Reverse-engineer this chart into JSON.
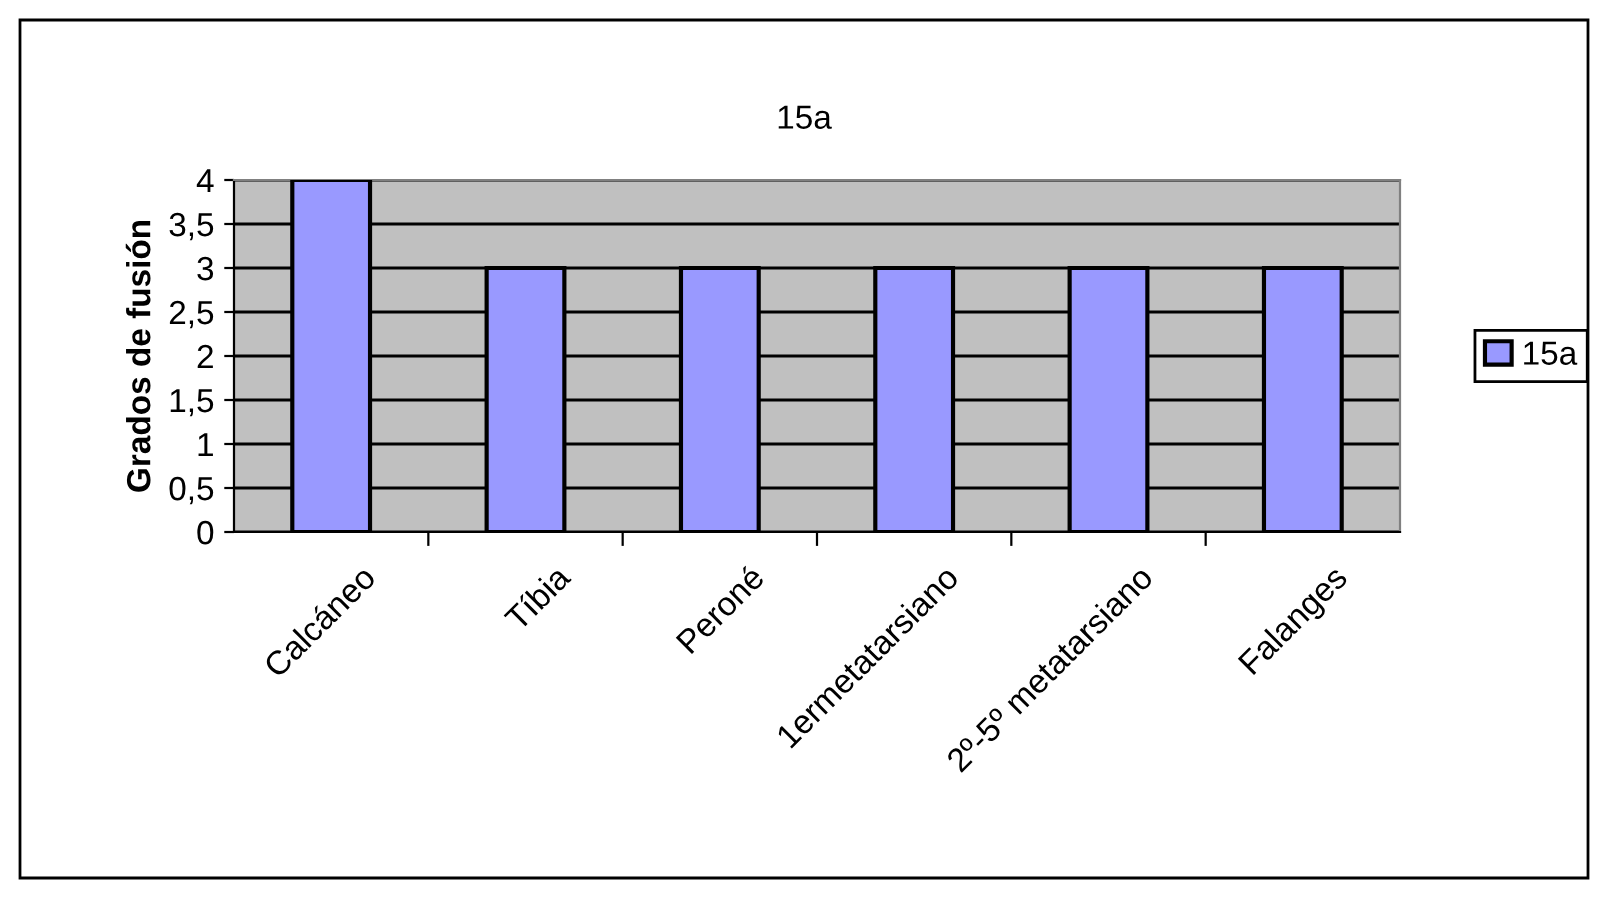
{
  "chart_data": {
    "type": "bar",
    "title": "15a",
    "ylabel": "Grados de fusión",
    "categories": [
      "Calcáneo",
      "Tíbia",
      "Peroné",
      "1ermetatarsiano",
      "2º-5º metatarsiano",
      "Falanges"
    ],
    "series": [
      {
        "name": "15a",
        "color": "#9999ff",
        "values": [
          4,
          3,
          3,
          3,
          3,
          3
        ]
      }
    ],
    "ylim": [
      0,
      4
    ],
    "yticks": [
      0,
      {
        "value": 0.5,
        "label": "0,5"
      },
      1,
      {
        "value": 1.5,
        "label": "1,5"
      },
      2,
      {
        "value": 2.5,
        "label": "2,5"
      },
      3,
      {
        "value": 3.5,
        "label": "3,5"
      },
      4
    ],
    "grid": "y",
    "legend": "right"
  }
}
